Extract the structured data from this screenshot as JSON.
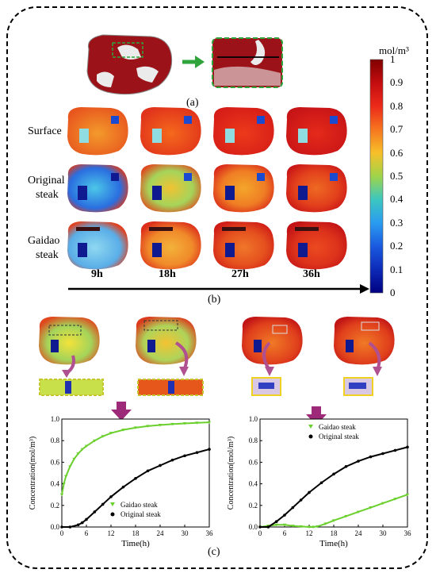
{
  "panel_a": {
    "label": "(a)"
  },
  "panel_b": {
    "label": "(b)",
    "row_labels": [
      {
        "line1": "Surface",
        "line2": ""
      },
      {
        "line1": "Original",
        "line2": "steak"
      },
      {
        "line1": "Gaidao",
        "line2": "steak"
      }
    ],
    "time_labels": [
      "9h",
      "18h",
      "27h",
      "36h"
    ]
  },
  "colorbar": {
    "unit": "mol/m³",
    "ticks": [
      "1",
      "0.9",
      "0.8",
      "0.7",
      "0.6",
      "0.5",
      "0.4",
      "0.3",
      "0.2",
      "0.1",
      "0"
    ]
  },
  "panel_c": {
    "label": "(c)"
  },
  "chart_data": [
    {
      "type": "line",
      "xlabel": "Time(h)",
      "ylabel": "Concentration(mol/m³)",
      "xlim": [
        0,
        36
      ],
      "ylim": [
        0,
        1.0
      ],
      "xticks": [
        0,
        6,
        12,
        18,
        24,
        30,
        36
      ],
      "yticks": [
        0.0,
        0.2,
        0.4,
        0.6,
        0.8,
        1.0
      ],
      "legend_position": "bottom-right",
      "series": [
        {
          "name": "Gaidao steak",
          "color": "#6bd02e",
          "marker": "triangle",
          "x": [
            0,
            0.5,
            1,
            2,
            3,
            4,
            5,
            6,
            8,
            10,
            12,
            15,
            18,
            21,
            24,
            27,
            30,
            33,
            36
          ],
          "y": [
            0.3,
            0.4,
            0.47,
            0.56,
            0.63,
            0.68,
            0.72,
            0.75,
            0.8,
            0.84,
            0.87,
            0.9,
            0.92,
            0.935,
            0.945,
            0.953,
            0.96,
            0.965,
            0.97
          ]
        },
        {
          "name": "Original steak",
          "color": "#000000",
          "marker": "circle",
          "x": [
            0,
            2,
            4,
            5,
            6,
            8,
            10,
            12,
            15,
            18,
            21,
            24,
            27,
            30,
            33,
            36
          ],
          "y": [
            0,
            0,
            0.02,
            0.04,
            0.07,
            0.14,
            0.21,
            0.28,
            0.37,
            0.45,
            0.52,
            0.57,
            0.62,
            0.66,
            0.69,
            0.72
          ]
        }
      ]
    },
    {
      "type": "line",
      "xlabel": "Time(h)",
      "ylabel": "Concentration(mol/m³)",
      "xlim": [
        0,
        36
      ],
      "ylim": [
        0,
        1.0
      ],
      "xticks": [
        0,
        6,
        12,
        18,
        24,
        30,
        36
      ],
      "yticks": [
        0.0,
        0.2,
        0.4,
        0.6,
        0.8,
        1.0
      ],
      "legend_position": "top-right",
      "series": [
        {
          "name": "Gaidao steak",
          "color": "#6bd02e",
          "marker": "triangle",
          "x": [
            0,
            2,
            4,
            6,
            8,
            10,
            12,
            13,
            14,
            16,
            18,
            21,
            24,
            27,
            30,
            33,
            36
          ],
          "y": [
            0,
            0.01,
            0.02,
            0.02,
            0.01,
            0.005,
            0,
            0,
            0.005,
            0.03,
            0.06,
            0.1,
            0.14,
            0.18,
            0.22,
            0.26,
            0.3
          ]
        },
        {
          "name": "Original steak",
          "color": "#000000",
          "marker": "circle",
          "x": [
            0,
            2,
            4,
            6,
            8,
            10,
            12,
            15,
            18,
            21,
            24,
            27,
            30,
            33,
            36
          ],
          "y": [
            0,
            0,
            0.05,
            0.11,
            0.18,
            0.25,
            0.32,
            0.41,
            0.49,
            0.56,
            0.61,
            0.65,
            0.68,
            0.71,
            0.74
          ]
        }
      ]
    }
  ]
}
